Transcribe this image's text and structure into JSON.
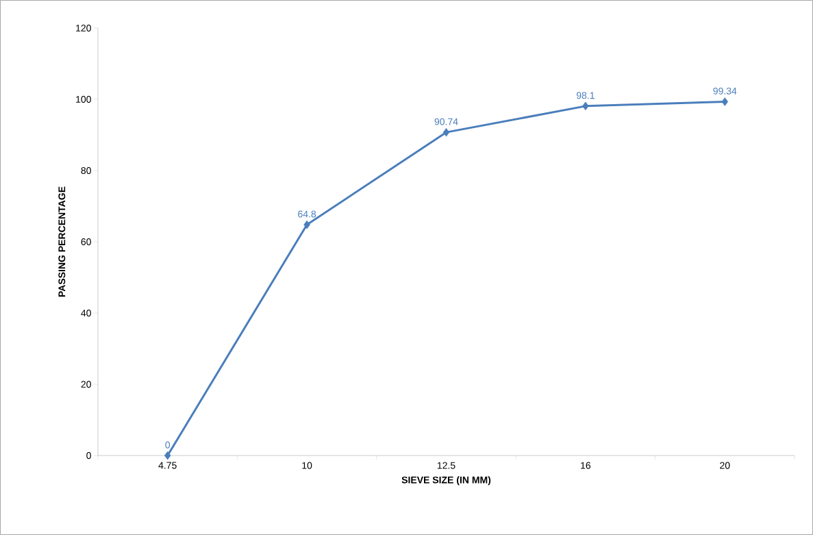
{
  "chart_data": {
    "type": "line",
    "xlabel": "SIEVE SIZE (IN MM)",
    "ylabel": "PASSING PERCENTAGE",
    "categories": [
      "4.75",
      "10",
      "12.5",
      "16",
      "20"
    ],
    "values": [
      0,
      64.8,
      90.74,
      98.1,
      99.34
    ],
    "color": "#4a7ebb",
    "ylim": [
      0,
      120
    ],
    "yticks": [
      0,
      20,
      40,
      60,
      80,
      100,
      120
    ],
    "marker": "diamond",
    "line_style": "solid",
    "data_labels": true
  }
}
